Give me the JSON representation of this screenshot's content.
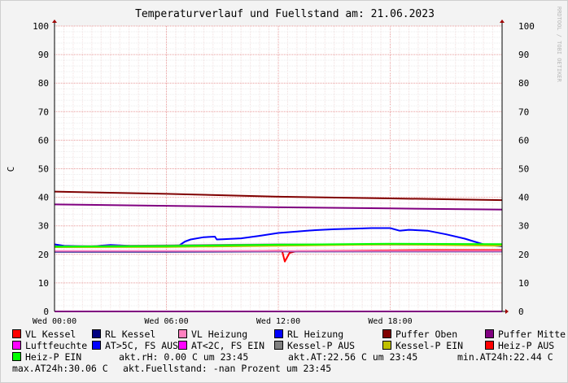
{
  "title": "Temperaturverlauf und Fuellstand am: 21.06.2023",
  "watermark": "RRDTOOL / TOBI OETIKER",
  "chart_data": {
    "type": "line",
    "title": "Temperaturverlauf und Fuellstand am: 21.06.2023",
    "ylabel": "C",
    "ylim": [
      0,
      100
    ],
    "y_ticks": [
      0,
      10,
      20,
      30,
      40,
      50,
      60,
      70,
      80,
      90,
      100
    ],
    "xlim": [
      0,
      24
    ],
    "x_ticks": [
      {
        "hour": 0,
        "label": "Wed 00:00"
      },
      {
        "hour": 6,
        "label": "Wed 06:00"
      },
      {
        "hour": 12,
        "label": "Wed 12:00"
      },
      {
        "hour": 18,
        "label": "Wed 18:00"
      }
    ],
    "grid": true,
    "legend_position": "bottom",
    "series": [
      {
        "name": "VL Kessel",
        "color": "#ff0000",
        "points": [
          [
            0,
            21.0
          ],
          [
            8,
            21.0
          ],
          [
            12.2,
            21.3
          ],
          [
            12.35,
            17.5
          ],
          [
            12.6,
            20.5
          ],
          [
            13,
            21.2
          ],
          [
            16,
            21.3
          ],
          [
            20,
            21.5
          ],
          [
            24,
            21.5
          ]
        ]
      },
      {
        "name": "RL Kessel",
        "color": "#000080",
        "points": [
          [
            0,
            20.9
          ],
          [
            6,
            20.9
          ],
          [
            12,
            21.0
          ],
          [
            16,
            21.0
          ],
          [
            20,
            21.0
          ],
          [
            24,
            21.0
          ]
        ]
      },
      {
        "name": "VL Heizung",
        "color": "#ff80c0",
        "points": [
          [
            0,
            21.2
          ],
          [
            24,
            21.2
          ]
        ]
      },
      {
        "name": "RL Heizung",
        "color": "#0000ff",
        "points": [
          [
            0,
            23.5
          ],
          [
            0.5,
            23.0
          ],
          [
            2,
            22.8
          ],
          [
            3,
            23.3
          ],
          [
            4,
            23.0
          ],
          [
            6,
            22.8
          ],
          [
            6.7,
            23.2
          ],
          [
            7,
            24.5
          ],
          [
            7.3,
            25.2
          ],
          [
            8,
            26.0
          ],
          [
            8.6,
            26.2
          ],
          [
            8.7,
            25.2
          ],
          [
            9,
            25.3
          ],
          [
            10,
            25.6
          ],
          [
            11,
            26.5
          ],
          [
            12,
            27.5
          ],
          [
            13,
            28.0
          ],
          [
            14,
            28.5
          ],
          [
            15,
            28.8
          ],
          [
            16,
            29.0
          ],
          [
            17,
            29.2
          ],
          [
            18,
            29.2
          ],
          [
            18.5,
            28.3
          ],
          [
            19,
            28.6
          ],
          [
            20,
            28.3
          ],
          [
            21,
            27.0
          ],
          [
            22,
            25.5
          ],
          [
            22.5,
            24.5
          ],
          [
            23,
            23.5
          ],
          [
            24,
            22.8
          ]
        ]
      },
      {
        "name": "Puffer Oben",
        "color": "#800000",
        "points": [
          [
            0,
            42.0
          ],
          [
            6,
            41.2
          ],
          [
            12,
            40.2
          ],
          [
            18,
            39.6
          ],
          [
            24,
            39.0
          ]
        ]
      },
      {
        "name": "Puffer Mitte",
        "color": "#800080",
        "points": [
          [
            0,
            37.5
          ],
          [
            6,
            37.0
          ],
          [
            12,
            36.5
          ],
          [
            18,
            36.1
          ],
          [
            24,
            35.7
          ]
        ]
      },
      {
        "name": "Luftfeuchte",
        "color": "#ff00ff",
        "points": [
          [
            0,
            0
          ],
          [
            24,
            0
          ]
        ]
      },
      {
        "name": "AT>5C, FS AUS",
        "color": "#0000ff",
        "points": []
      },
      {
        "name": "AT<2C, FS EIN",
        "color": "#ff00ff",
        "points": []
      },
      {
        "name": "Kessel-P AUS",
        "color": "#808080",
        "points": [
          [
            0,
            22.8
          ],
          [
            12,
            23.5
          ],
          [
            24,
            23.3
          ]
        ]
      },
      {
        "name": "Kessel-P EIN",
        "color": "#c0c000",
        "points": [
          [
            0,
            22.5
          ],
          [
            6,
            22.6
          ],
          [
            12,
            23.0
          ],
          [
            18,
            23.5
          ],
          [
            24,
            23.0
          ]
        ]
      },
      {
        "name": "Heiz-P AUS",
        "color": "#ff0000",
        "points": []
      },
      {
        "name": "Heiz-P EIN",
        "color": "#00ff00",
        "points": [
          [
            0,
            22.7
          ],
          [
            6,
            22.9
          ],
          [
            12,
            23.4
          ],
          [
            18,
            23.7
          ],
          [
            24,
            23.6
          ]
        ]
      }
    ]
  },
  "legend": {
    "rows": [
      [
        {
          "label": "VL Kessel",
          "color": "#ff0000"
        },
        {
          "label": "RL Kessel",
          "color": "#000080"
        },
        {
          "label": "VL Heizung",
          "color": "#ff80c0"
        },
        {
          "label": "RL Heizung",
          "color": "#0000ff"
        },
        {
          "label": "Puffer Oben",
          "color": "#800000"
        },
        {
          "label": "Puffer Mitte",
          "color": "#800080"
        }
      ],
      [
        {
          "label": "Luftfeuchte",
          "color": "#ff00ff"
        },
        {
          "label": "AT>5C, FS AUS",
          "color": "#0000ff"
        },
        {
          "label": "AT<2C, FS EIN",
          "color": "#ff00ff"
        },
        {
          "label": "Kessel-P AUS",
          "color": "#808080"
        },
        {
          "label": "Kessel-P EIN",
          "color": "#c0c000"
        },
        {
          "label": "Heiz-P AUS",
          "color": "#ff0000"
        }
      ]
    ],
    "heiz_p_ein": {
      "label": "Heiz-P EIN",
      "color": "#00ff00"
    },
    "stats": {
      "akt_rh": "akt.rH: 0.00 C um 23:45",
      "akt_at": "akt.AT:22.56 C um 23:45",
      "min_at": "min.AT24h:22.44 C",
      "max_at": "max.AT24h:30.06 C",
      "fuellstand": "akt.Fuellstand: -nan Prozent um 23:45"
    }
  }
}
